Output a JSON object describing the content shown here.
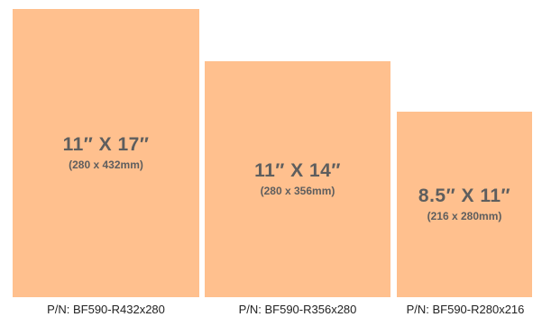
{
  "sheets": [
    {
      "size": "11″ X 17″",
      "metric": "(280 x 432mm)",
      "part_number": "P/N: BF590-R432x280"
    },
    {
      "size": "11″ X 14″",
      "metric": "(280 x 356mm)",
      "part_number": "P/N: BF590-R356x280"
    },
    {
      "size": "8.5″ X 11″",
      "metric": "(216 x 280mm)",
      "part_number": "P/N: BF590-R280x216"
    }
  ],
  "colors": {
    "sheet_fill": "#ffc08e",
    "sheet_text": "#5e5e5e",
    "label_text": "#222222"
  }
}
